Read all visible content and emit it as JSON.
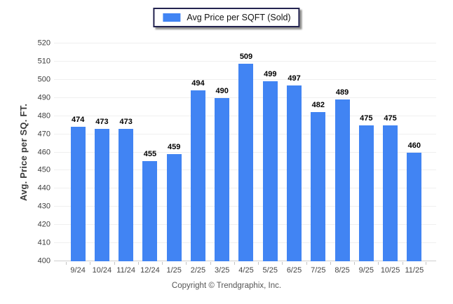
{
  "legend": {
    "label": "Avg Price per SQFT (Sold)"
  },
  "y_axis": {
    "title": "Avg. Price per SQ. FT."
  },
  "footer": {
    "copyright": "Copyright © Trendgraphix, Inc."
  },
  "colors": {
    "bar": "#4184f3",
    "gridline": "#efefef",
    "baseline": "#cfcfcf",
    "tick": "#c4c4c4",
    "legend_border": "#23234f"
  },
  "chart_data": {
    "type": "bar",
    "title": "",
    "categories": [
      "9/24",
      "10/24",
      "11/24",
      "12/24",
      "1/25",
      "2/25",
      "3/25",
      "4/25",
      "5/25",
      "6/25",
      "7/25",
      "8/25",
      "9/25",
      "10/25",
      "11/25"
    ],
    "series": [
      {
        "name": "Avg Price per SQFT (Sold)",
        "values": [
          474,
          473,
          473,
          455,
          459,
          494,
          490,
          509,
          499,
          497,
          482,
          489,
          475,
          475,
          460
        ]
      }
    ],
    "xlabel": "",
    "ylabel": "Avg. Price per SQ. FT.",
    "ylim": [
      400,
      520
    ],
    "ytick_step": 10,
    "grid": true,
    "legend_position": "top-center",
    "bar_color": "#4184f3",
    "value_labels": true
  }
}
